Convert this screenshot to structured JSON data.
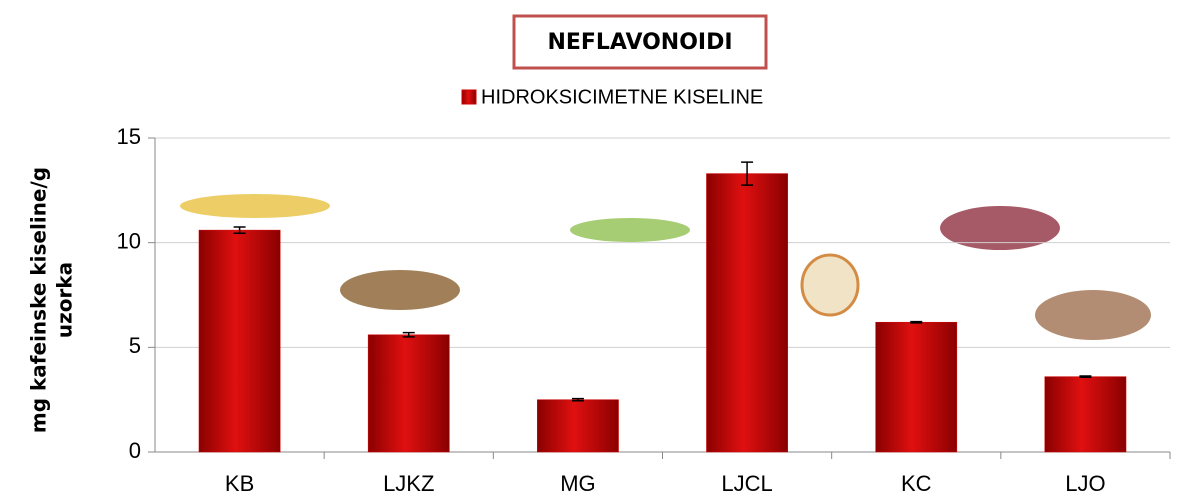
{
  "chart_data": {
    "type": "bar",
    "title": "NEFLAVONOIDI",
    "y_label": [
      "mg kafeinske kiseline/g",
      "uzorka"
    ],
    "categories": [
      "KB",
      "LJKZ",
      "MG",
      "LJCL",
      "KC",
      "LJO"
    ],
    "series": [
      {
        "name": "HIDROKSICIMETNE KISELINE",
        "color": "#d00000",
        "values": [
          10.6,
          5.6,
          2.5,
          13.3,
          6.2,
          3.6
        ],
        "errors": [
          0.15,
          0.1,
          0.05,
          0.55,
          0.03,
          0.03
        ]
      }
    ],
    "ylim": [
      0,
      15
    ],
    "yticks": [
      0,
      5,
      10,
      15
    ],
    "grid": true
  }
}
